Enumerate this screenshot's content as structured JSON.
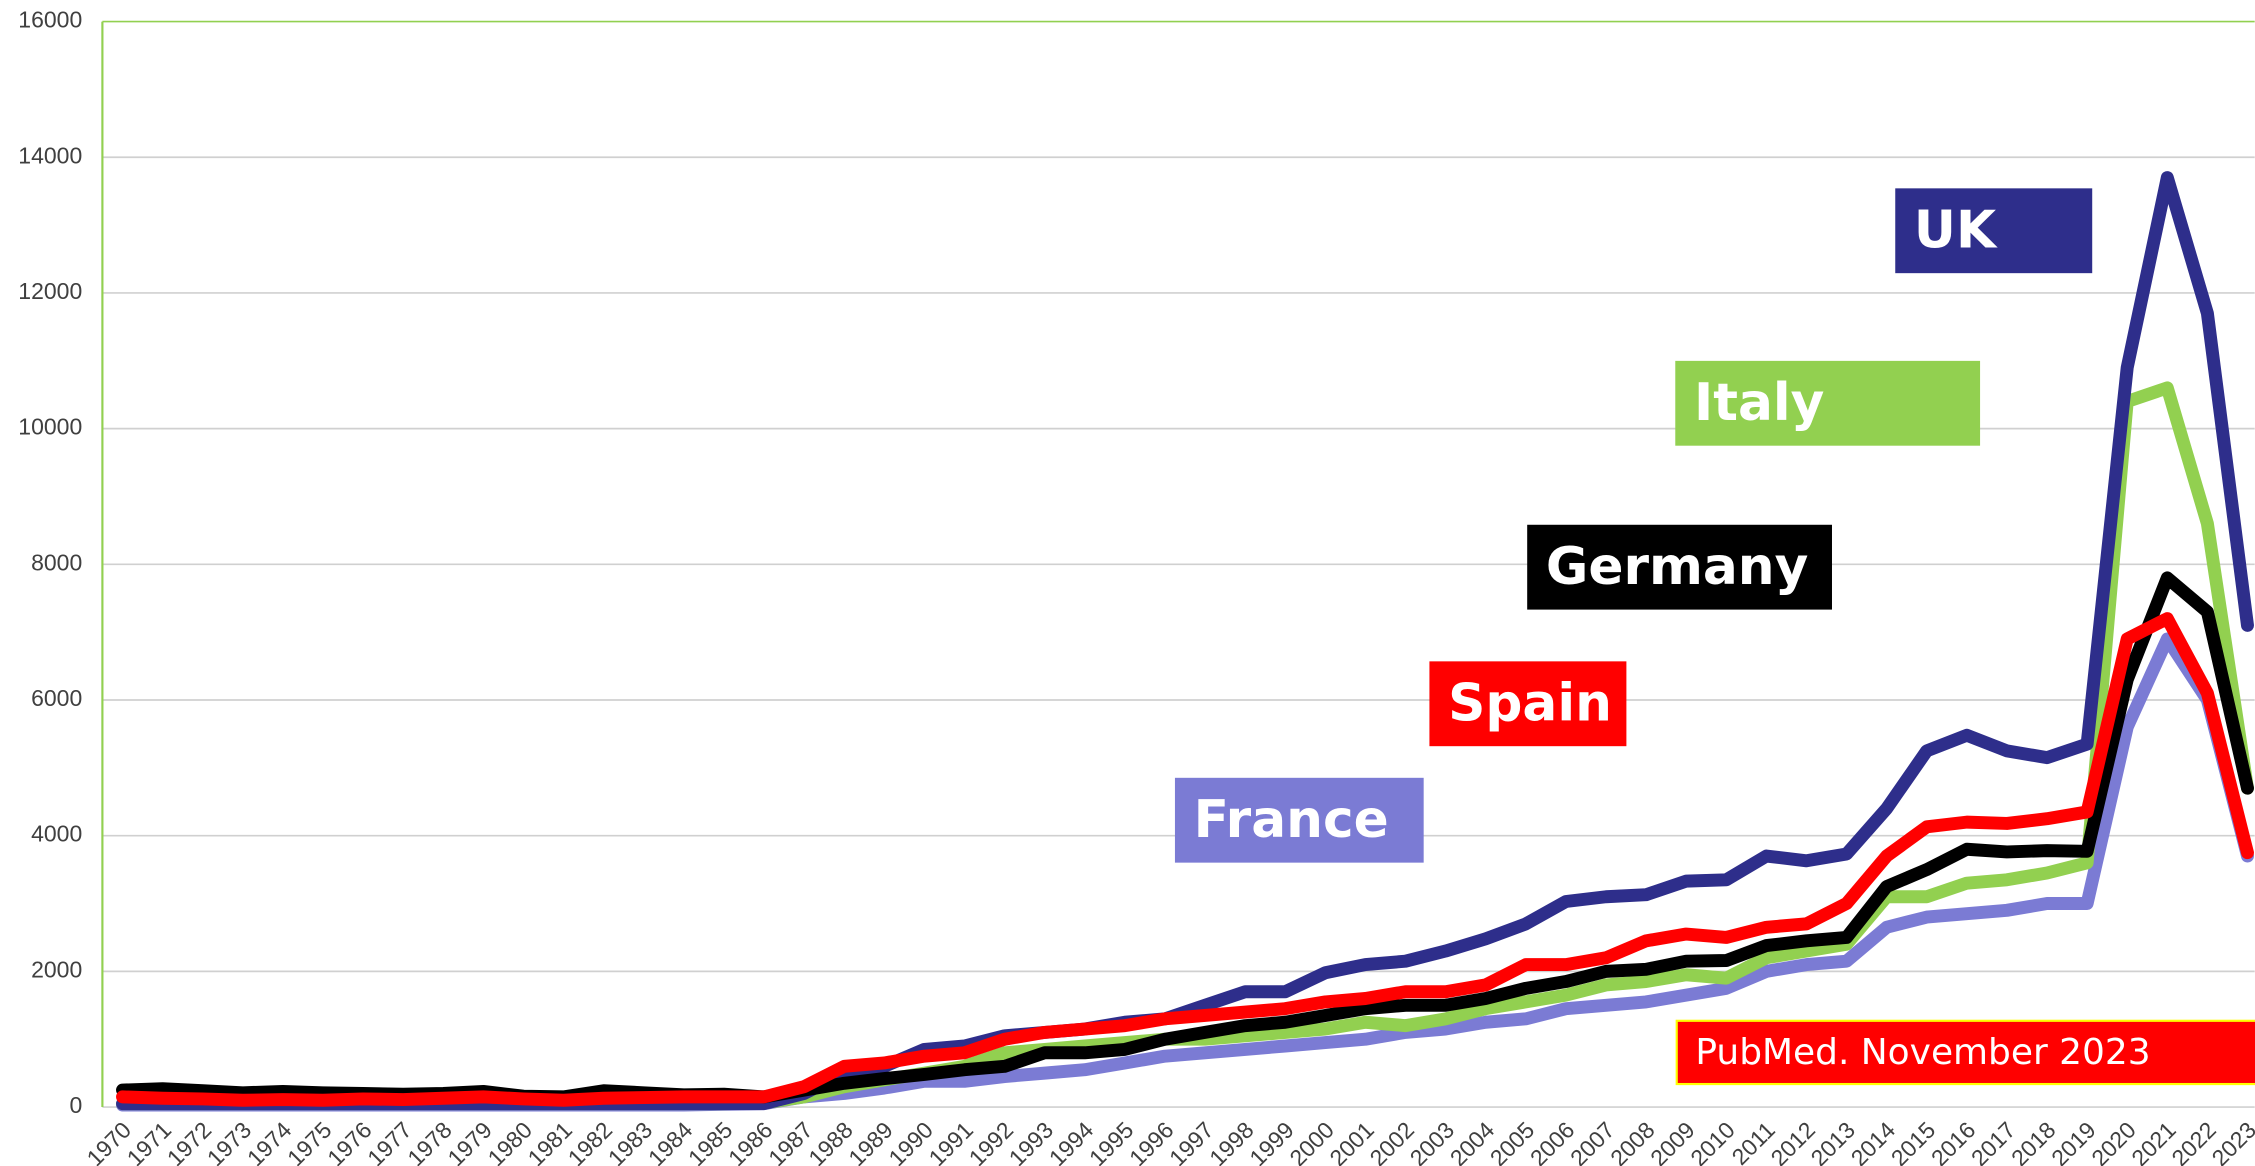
{
  "chart_data": {
    "type": "line",
    "categories": [
      "1970",
      "1971",
      "1972",
      "1973",
      "1974",
      "1975",
      "1976",
      "1977",
      "1978",
      "1979",
      "1980",
      "1981",
      "1982",
      "1983",
      "1984",
      "1985",
      "1986",
      "1987",
      "1988",
      "1989",
      "1990",
      "1991",
      "1992",
      "1993",
      "1994",
      "1995",
      "1996",
      "1997",
      "1998",
      "1999",
      "2000",
      "2001",
      "2002",
      "2003",
      "2004",
      "2005",
      "2006",
      "2007",
      "2008",
      "2009",
      "2010",
      "2011",
      "2012",
      "2013",
      "2014",
      "2015",
      "2016",
      "2017",
      "2018",
      "2019",
      "2020",
      "2021",
      "2022",
      "2023"
    ],
    "ylim": [
      0,
      16000
    ],
    "yticks": [
      0,
      2000,
      4000,
      6000,
      8000,
      10000,
      12000,
      14000,
      16000
    ],
    "grid": true,
    "annotation": "PubMed. November 2023",
    "series": [
      {
        "name": "France",
        "color": "#7b7bd4",
        "values": [
          30,
          30,
          30,
          30,
          30,
          30,
          30,
          30,
          30,
          30,
          30,
          30,
          30,
          30,
          30,
          40,
          50,
          150,
          200,
          280,
          380,
          380,
          450,
          500,
          550,
          650,
          750,
          800,
          850,
          900,
          950,
          1000,
          1100,
          1150,
          1250,
          1300,
          1450,
          1500,
          1550,
          1650,
          1750,
          2000,
          2100,
          2150,
          2650,
          2800,
          2850,
          2900,
          3000,
          3000,
          5600,
          6900,
          6000,
          3700
        ]
      },
      {
        "name": "Italy",
        "color": "#92d050",
        "values": [
          50,
          50,
          50,
          50,
          50,
          50,
          50,
          50,
          50,
          50,
          50,
          50,
          50,
          50,
          50,
          50,
          60,
          150,
          300,
          400,
          500,
          600,
          800,
          850,
          900,
          950,
          1000,
          1000,
          1050,
          1100,
          1150,
          1250,
          1200,
          1300,
          1450,
          1550,
          1650,
          1800,
          1850,
          1950,
          1900,
          2200,
          2300,
          2400,
          3100,
          3100,
          3300,
          3350,
          3450,
          3600,
          10400,
          10600,
          8600,
          4700
        ]
      },
      {
        "name": "UK",
        "color": "#2e2e8b",
        "values": [
          50,
          50,
          50,
          50,
          50,
          50,
          50,
          50,
          50,
          50,
          50,
          50,
          50,
          50,
          50,
          50,
          50,
          200,
          500,
          600,
          850,
          900,
          1050,
          1100,
          1150,
          1250,
          1300,
          1500,
          1700,
          1700,
          1980,
          2100,
          2150,
          2300,
          2480,
          2700,
          3030,
          3100,
          3130,
          3330,
          3350,
          3700,
          3630,
          3730,
          4400,
          5250,
          5480,
          5250,
          5150,
          5350,
          10900,
          13700,
          11700,
          7100
        ]
      },
      {
        "name": "Germany",
        "color": "#000000",
        "values": [
          250,
          270,
          240,
          210,
          230,
          210,
          200,
          190,
          200,
          230,
          160,
          150,
          240,
          210,
          180,
          190,
          150,
          250,
          350,
          420,
          480,
          550,
          600,
          800,
          800,
          850,
          1000,
          1100,
          1200,
          1250,
          1350,
          1450,
          1500,
          1500,
          1600,
          1750,
          1850,
          2000,
          2030,
          2150,
          2160,
          2380,
          2450,
          2500,
          3250,
          3500,
          3800,
          3760,
          3780,
          3770,
          6300,
          7800,
          7300,
          4700
        ]
      },
      {
        "name": "Spain",
        "color": "#ff0000",
        "values": [
          150,
          130,
          120,
          100,
          110,
          100,
          120,
          110,
          130,
          150,
          120,
          100,
          130,
          140,
          150,
          150,
          150,
          300,
          600,
          650,
          750,
          800,
          1000,
          1100,
          1150,
          1200,
          1300,
          1350,
          1400,
          1450,
          1550,
          1600,
          1700,
          1700,
          1800,
          2100,
          2100,
          2200,
          2450,
          2550,
          2500,
          2650,
          2700,
          3000,
          3700,
          4130,
          4200,
          4180,
          4250,
          4350,
          6900,
          7200,
          6100,
          3750
        ]
      }
    ]
  }
}
